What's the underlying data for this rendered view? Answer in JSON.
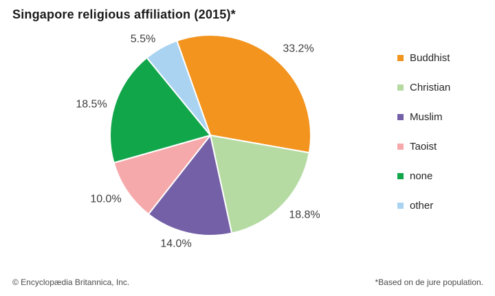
{
  "title": "Singapore religious affiliation (2015)*",
  "footer": {
    "copyright": "© Encyclopædia Britannica, Inc.",
    "note": "*Based on de jure population."
  },
  "chart_data": {
    "type": "pie",
    "title": "Singapore religious affiliation (2015)*",
    "unit": "percent",
    "direction": "clockwise",
    "start_angle_deg": -19.5,
    "legend_position": "right",
    "slices": [
      {
        "label": "Buddhist",
        "value": 33.2,
        "display": "33.2%",
        "color": "#F3941E"
      },
      {
        "label": "Christian",
        "value": 18.8,
        "display": "18.8%",
        "color": "#B5DBA3"
      },
      {
        "label": "Muslim",
        "value": 14.0,
        "display": "14.0%",
        "color": "#7460A7"
      },
      {
        "label": "Taoist",
        "value": 10.0,
        "display": "10.0%",
        "color": "#F6A9AA"
      },
      {
        "label": "none",
        "value": 18.5,
        "display": "18.5%",
        "color": "#12A64B"
      },
      {
        "label": "other",
        "value": 5.5,
        "display": "5.5%",
        "color": "#AAD3F2"
      }
    ]
  }
}
